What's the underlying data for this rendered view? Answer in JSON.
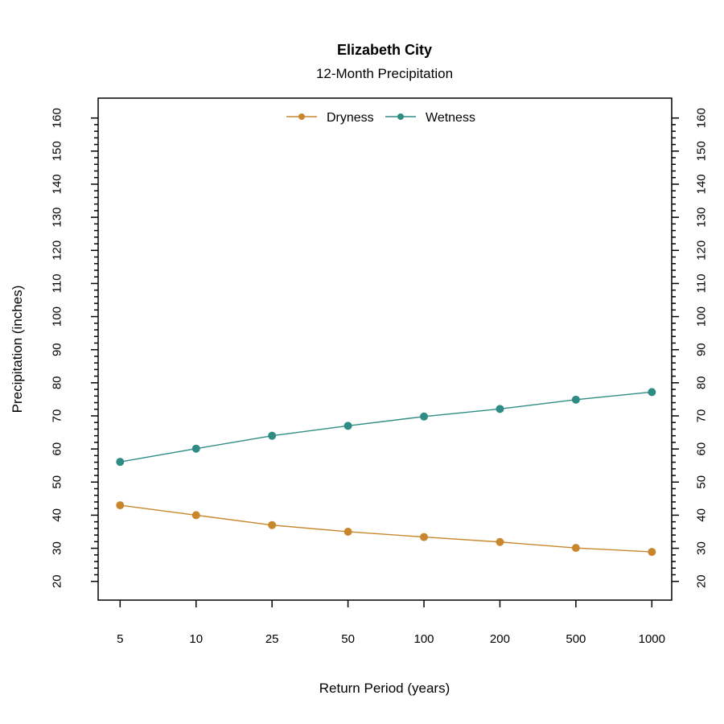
{
  "chart_data": {
    "type": "line",
    "title": "Elizabeth City",
    "subtitle": "12-Month Precipitation",
    "xlabel": "Return Period (years)",
    "ylabel": "Precipitation (inches)",
    "categories": [
      "5",
      "10",
      "25",
      "50",
      "100",
      "200",
      "500",
      "1000"
    ],
    "series": [
      {
        "name": "Dryness",
        "color": "#C8872D",
        "values": [
          43,
          40,
          37,
          35,
          33.4,
          31.9,
          30.1,
          28.9
        ]
      },
      {
        "name": "Wetness",
        "color": "#2E8C85",
        "values": [
          56.1,
          60.1,
          64,
          67,
          69.8,
          72.1,
          74.9,
          77.2
        ]
      }
    ],
    "y_axis": {
      "min": 20,
      "max": 160,
      "major_step": 10,
      "minor_step": 2,
      "mirrored_right": true,
      "tick_label_rotation": "vertical"
    },
    "x_axis": {
      "scale": "log-like, evenly spaced ticks",
      "minor_ticks": false
    },
    "legend": {
      "position": "top-center-inside",
      "entries": [
        "Dryness",
        "Wetness"
      ]
    },
    "grid": false,
    "background_color": "#FFFFFF",
    "axis_color": "#000000"
  }
}
